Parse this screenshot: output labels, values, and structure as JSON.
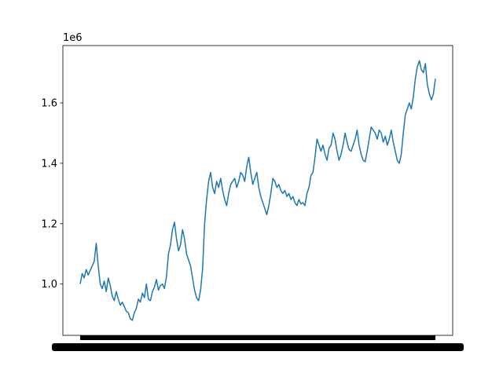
{
  "chart_data": {
    "type": "line",
    "title": "",
    "xlabel": "",
    "ylabel": "",
    "y_offset_label": "1e6",
    "ylim": [
      830000,
      1790000
    ],
    "yticks": [
      1.0,
      1.2,
      1.4,
      1.6
    ],
    "ytick_scale": 1000000,
    "xtick_labels_note": "x-axis tick labels are overlapping and illegible",
    "grid": false,
    "legend": "none",
    "color": "#1f77b4",
    "series": [
      {
        "values": [
          1000000,
          1035000,
          1020000,
          1048000,
          1030000,
          1045000,
          1060000,
          1075000,
          1135000,
          1060000,
          1000000,
          985000,
          1010000,
          975000,
          1020000,
          995000,
          960000,
          945000,
          975000,
          950000,
          930000,
          940000,
          925000,
          910000,
          905000,
          885000,
          880000,
          905000,
          920000,
          950000,
          940000,
          970000,
          955000,
          1000000,
          950000,
          945000,
          975000,
          990000,
          1015000,
          980000,
          995000,
          1000000,
          985000,
          1025000,
          1100000,
          1130000,
          1180000,
          1205000,
          1150000,
          1110000,
          1130000,
          1180000,
          1150000,
          1100000,
          1080000,
          1060000,
          1020000,
          980000,
          955000,
          945000,
          980000,
          1050000,
          1200000,
          1280000,
          1340000,
          1370000,
          1320000,
          1300000,
          1340000,
          1320000,
          1350000,
          1310000,
          1280000,
          1260000,
          1300000,
          1330000,
          1340000,
          1350000,
          1320000,
          1340000,
          1370000,
          1360000,
          1340000,
          1390000,
          1420000,
          1370000,
          1330000,
          1350000,
          1370000,
          1320000,
          1290000,
          1270000,
          1250000,
          1230000,
          1260000,
          1300000,
          1350000,
          1340000,
          1320000,
          1330000,
          1310000,
          1300000,
          1310000,
          1290000,
          1300000,
          1280000,
          1290000,
          1270000,
          1260000,
          1280000,
          1265000,
          1270000,
          1260000,
          1300000,
          1320000,
          1360000,
          1370000,
          1420000,
          1480000,
          1460000,
          1440000,
          1460000,
          1430000,
          1410000,
          1450000,
          1460000,
          1500000,
          1480000,
          1440000,
          1410000,
          1430000,
          1460000,
          1500000,
          1470000,
          1445000,
          1440000,
          1460000,
          1480000,
          1510000,
          1460000,
          1430000,
          1410000,
          1405000,
          1440000,
          1480000,
          1520000,
          1510000,
          1500000,
          1480000,
          1510000,
          1500000,
          1470000,
          1490000,
          1460000,
          1480000,
          1510000,
          1470000,
          1440000,
          1410000,
          1400000,
          1430000,
          1500000,
          1560000,
          1580000,
          1600000,
          1580000,
          1620000,
          1680000,
          1720000,
          1740000,
          1710000,
          1700000,
          1730000,
          1660000,
          1630000,
          1610000,
          1630000,
          1680000
        ]
      }
    ]
  }
}
